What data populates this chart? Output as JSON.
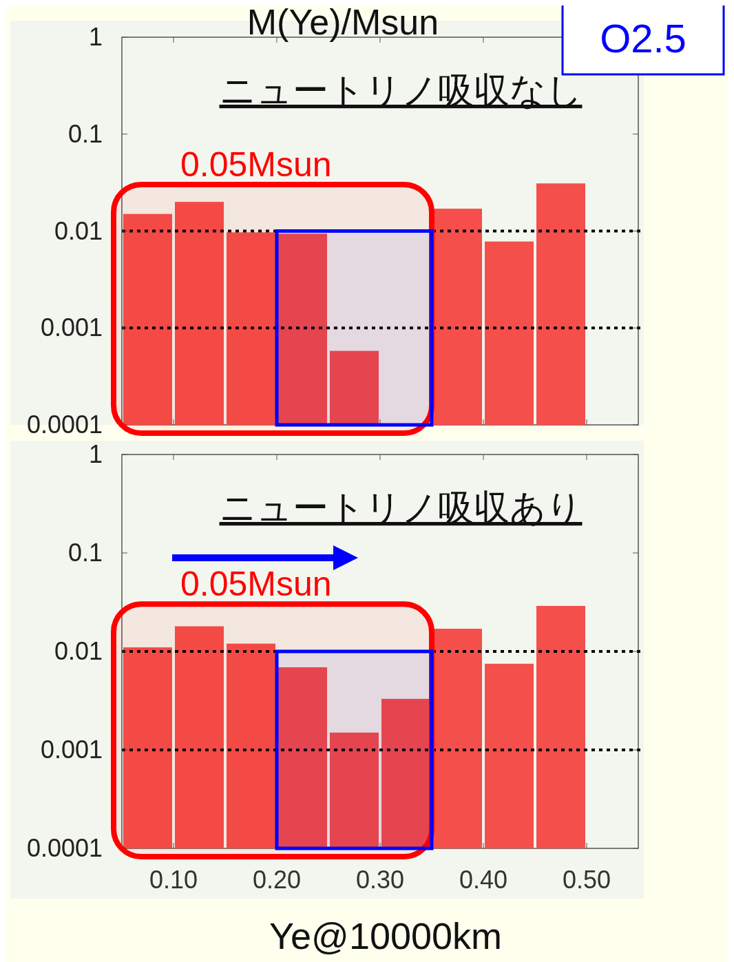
{
  "chart_data": [
    {
      "type": "histogram",
      "title": "ニュートリノ吸収なし",
      "ylabel": "M(Ye)/Msun",
      "annotations": [
        "O2.5"
      ],
      "bins": [
        0.05,
        0.1,
        0.15,
        0.2,
        0.25,
        0.3,
        0.35,
        0.4,
        0.45,
        0.5
      ],
      "values": [
        0.015,
        0.02,
        0.0097,
        0.0094,
        0.00058,
        null,
        0.017,
        0.0078,
        0.031
      ],
      "color": "#f44f4a",
      "log": true,
      "xlim": [
        0.05,
        0.55
      ],
      "xticks": [
        {
          "value": 0.1,
          "label": null
        },
        {
          "value": 0.2,
          "label": null
        },
        {
          "value": 0.3,
          "label": null
        },
        {
          "value": 0.4,
          "label": null
        },
        {
          "value": 0.5,
          "label": null
        }
      ],
      "ylim": [
        0.0001,
        1
      ],
      "yticks": [
        0.0001,
        0.001,
        0.01,
        0.1,
        1
      ],
      "tick_labels": "y",
      "grid": false,
      "ref_lines": [
        {
          "axis": "y",
          "value": 0.01,
          "color": "#000000",
          "line_style": "dotted"
        },
        {
          "axis": "y",
          "value": 0.001,
          "color": "#000000",
          "line_style": "dotted"
        }
      ],
      "bands": [
        {
          "axis": "x",
          "from": 0.05,
          "to": 0.35,
          "label": "0.05Msun",
          "color": "#ff0000"
        },
        {
          "axis": "x",
          "from": 0.2,
          "to": 0.35,
          "color": "#0000ff"
        }
      ]
    },
    {
      "type": "histogram",
      "title": "ニュートリノ吸収あり",
      "xlabel": "Ye@10000km",
      "bins": [
        0.05,
        0.1,
        0.15,
        0.2,
        0.25,
        0.3,
        0.35,
        0.4,
        0.45,
        0.5
      ],
      "values": [
        0.011,
        0.018,
        0.012,
        0.0069,
        0.0015,
        0.0033,
        0.017,
        0.0075,
        0.029
      ],
      "color": "#f44f4a",
      "log": true,
      "xlim": [
        0.05,
        0.55
      ],
      "xticks": [
        {
          "value": 0.1,
          "label": "0.10"
        },
        {
          "value": 0.2,
          "label": "0.20"
        },
        {
          "value": 0.3,
          "label": "0.30"
        },
        {
          "value": 0.4,
          "label": "0.40"
        },
        {
          "value": 0.5,
          "label": "0.50"
        }
      ],
      "ylim": [
        0.0001,
        1
      ],
      "yticks": [
        0.0001,
        0.001,
        0.01,
        0.1,
        1
      ],
      "grid": false,
      "ref_lines": [
        {
          "axis": "y",
          "value": 0.01,
          "color": "#000000",
          "line_style": "dotted"
        },
        {
          "axis": "y",
          "value": 0.001,
          "color": "#000000",
          "line_style": "dotted"
        }
      ],
      "bands": [
        {
          "axis": "x",
          "from": 0.05,
          "to": 0.35,
          "label": "0.05Msun",
          "color": "#ff0000"
        },
        {
          "axis": "x",
          "from": 0.2,
          "to": 0.35,
          "color": "#0000ff"
        }
      ]
    }
  ]
}
